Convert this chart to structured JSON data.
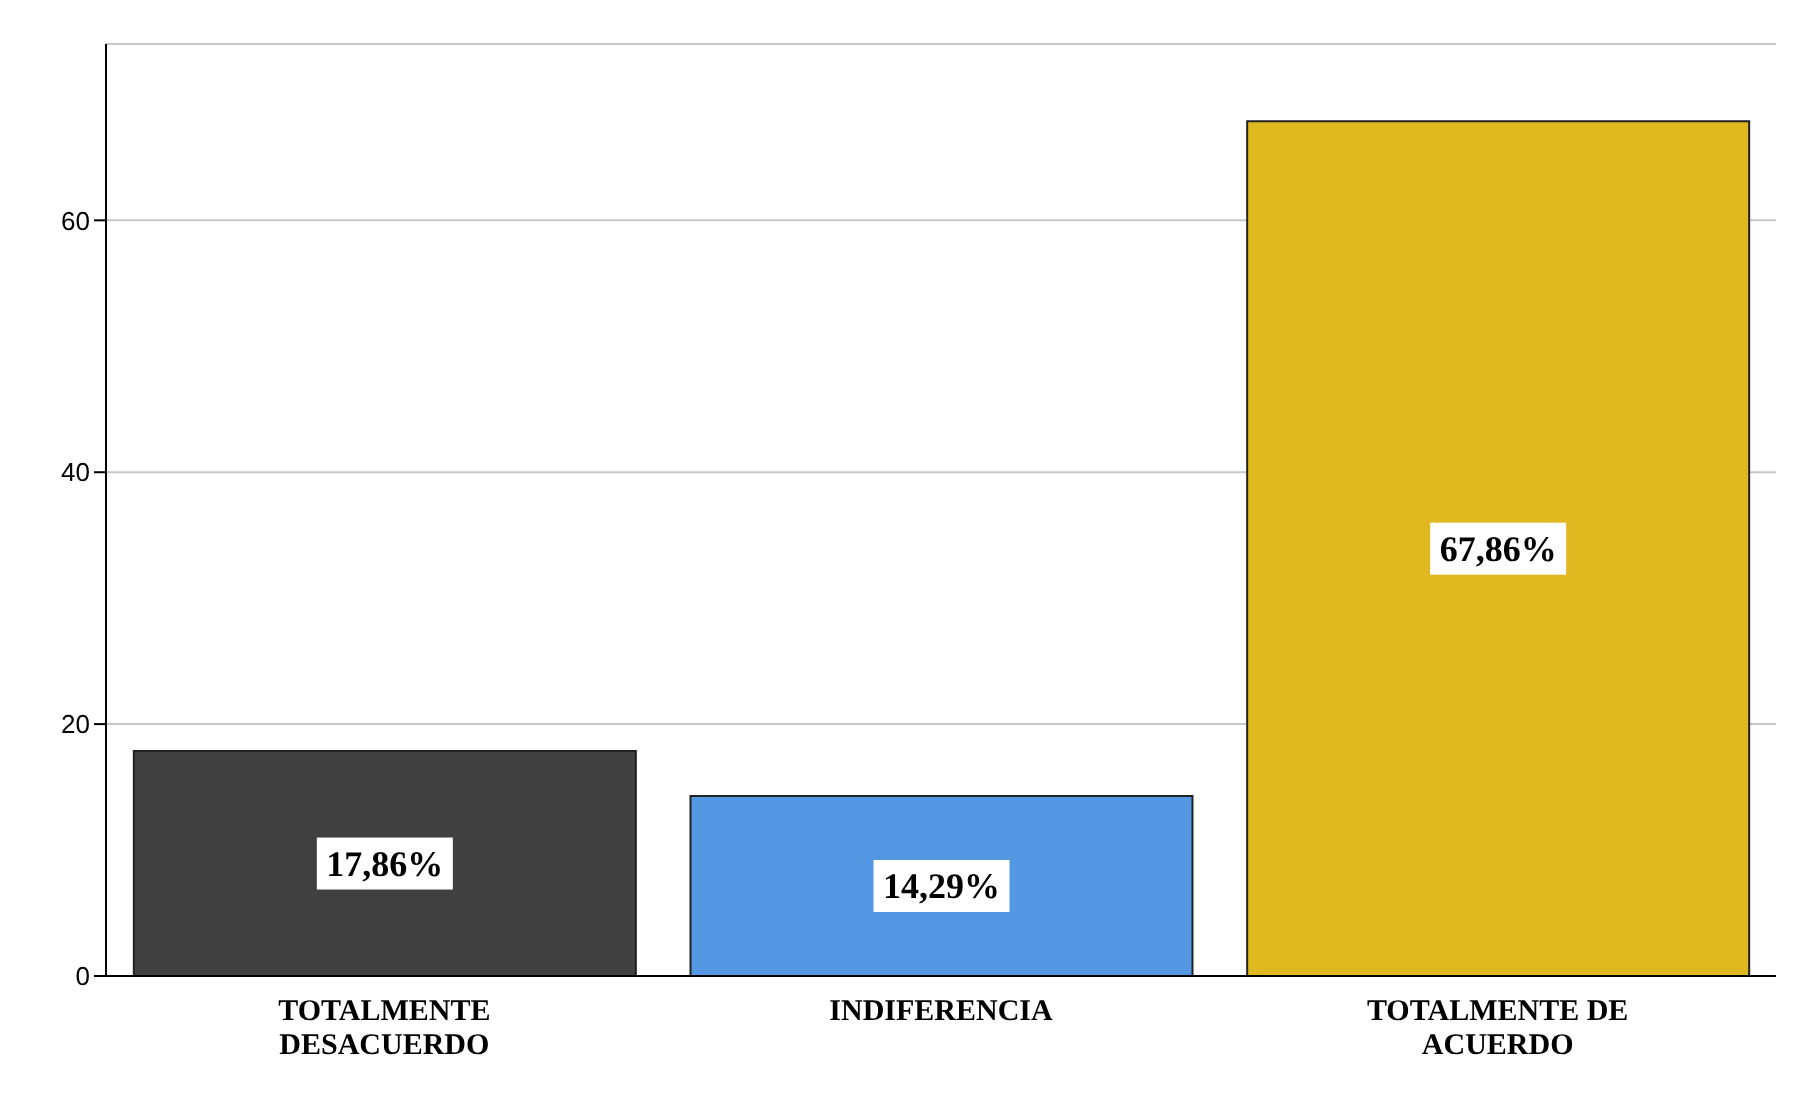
{
  "chart_data": {
    "type": "bar",
    "categories": [
      "TOTALMENTE DESACUERDO",
      "INDIFERENCIA",
      "TOTALMENTE DE ACUERDO"
    ],
    "values": [
      17.86,
      14.29,
      67.86
    ],
    "colors": [
      "#404040",
      "#5497e3",
      "#e0b920"
    ],
    "value_labels": [
      "17,86%",
      "14,29%",
      "67,86%"
    ],
    "ylim": [
      0,
      74
    ],
    "yticks": [
      0,
      20,
      40,
      60
    ],
    "grid": "y"
  }
}
